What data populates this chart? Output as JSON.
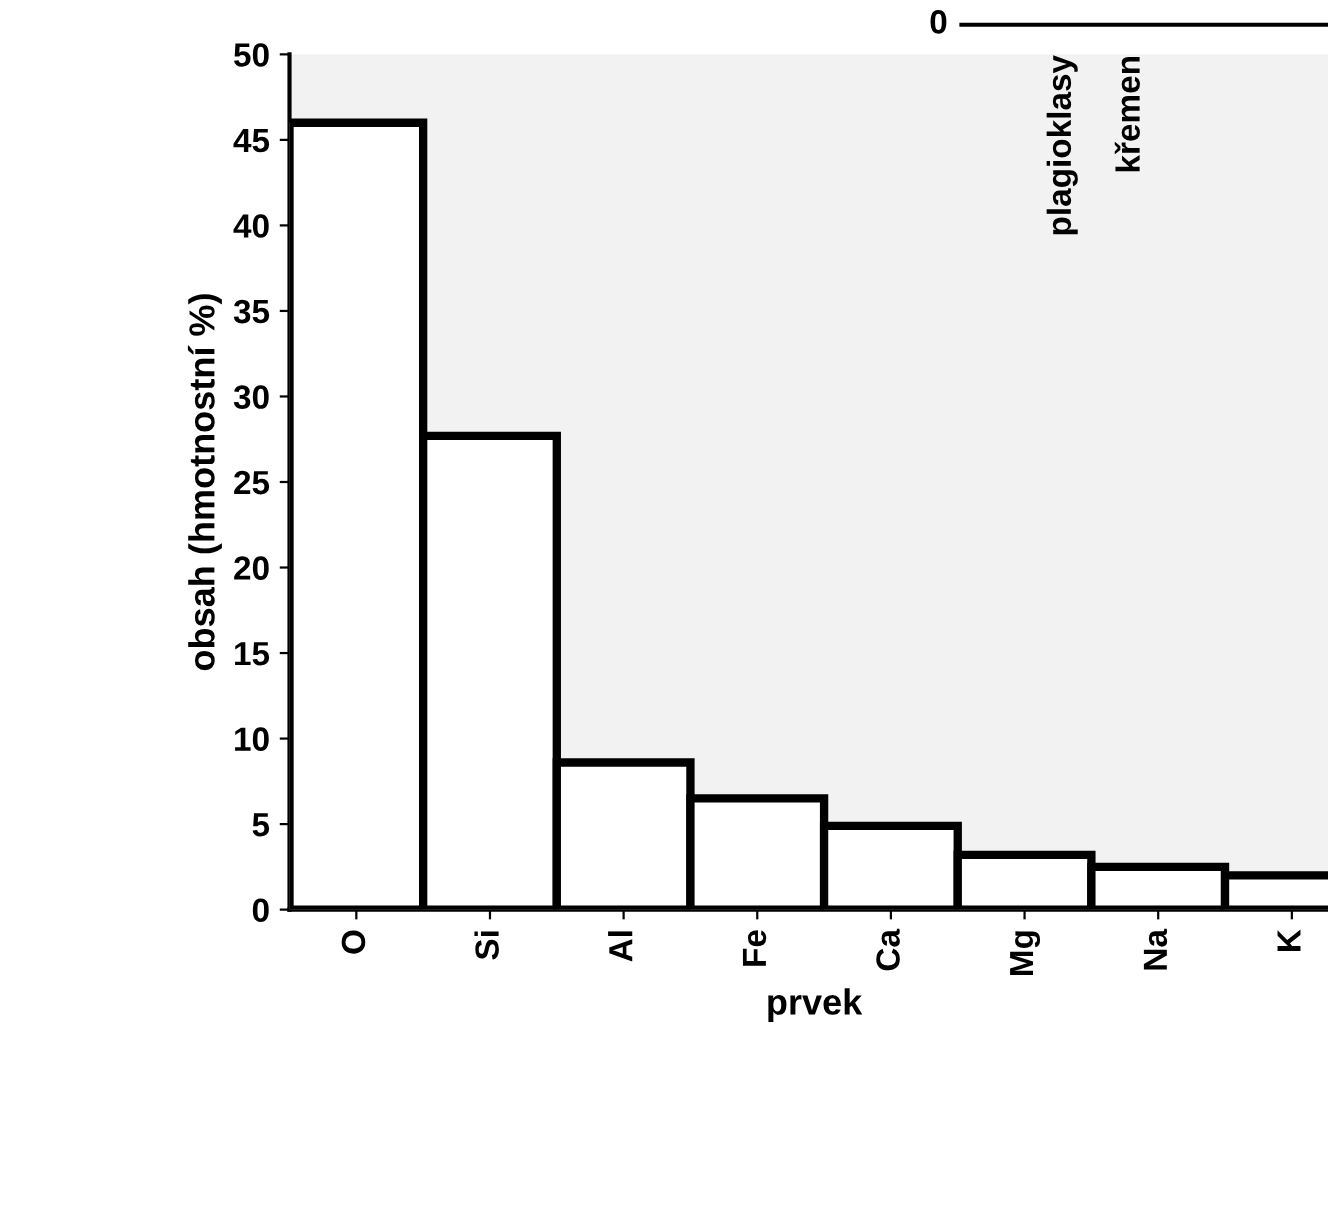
{
  "chart_data": [
    {
      "type": "bar",
      "xlabel": "prvek",
      "ylabel": "obsah (hmotnostní %)",
      "categories": [
        "O",
        "Si",
        "Al",
        "Fe",
        "Ca",
        "Mg",
        "Na",
        "K"
      ],
      "values": [
        46,
        27.7,
        8.6,
        6.5,
        4.9,
        3.2,
        2.5,
        2.0
      ],
      "color": "#ffffff",
      "ylim": [
        0,
        50
      ],
      "yticks": [
        0,
        5,
        10,
        15,
        20,
        25,
        30,
        35,
        40,
        45,
        50
      ],
      "grid": false
    },
    {
      "type": "other",
      "annotations": [
        "0",
        "plagioklasy",
        "křemen"
      ]
    }
  ]
}
